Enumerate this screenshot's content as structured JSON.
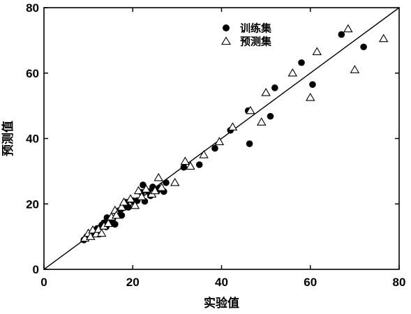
{
  "chart_data": {
    "type": "scatter",
    "title": "",
    "xlabel": "实验值",
    "ylabel": "预测值",
    "xlim": [
      0,
      80
    ],
    "ylim": [
      0,
      80
    ],
    "xticks": [
      "0",
      "20",
      "40",
      "60",
      "80"
    ],
    "yticks": [
      "0",
      "20",
      "40",
      "60",
      "80"
    ],
    "grid": false,
    "legend_position": "top-center",
    "reference_line": {
      "from": [
        0,
        0
      ],
      "to": [
        80,
        80
      ],
      "color": "#000000"
    },
    "series": [
      {
        "name": "训练集",
        "marker": "filled-circle",
        "color": "#000000",
        "points": [
          [
            9.0,
            9.0
          ],
          [
            10.2,
            10.5
          ],
          [
            11.5,
            11.0
          ],
          [
            12.0,
            12.5
          ],
          [
            12.5,
            11.5
          ],
          [
            13.0,
            13.5
          ],
          [
            13.5,
            14.2
          ],
          [
            14.0,
            13.0
          ],
          [
            14.2,
            15.8
          ],
          [
            15.0,
            14.5
          ],
          [
            15.5,
            15.5
          ],
          [
            16.0,
            13.8
          ],
          [
            16.5,
            17.0
          ],
          [
            17.0,
            18.0
          ],
          [
            17.5,
            16.5
          ],
          [
            18.0,
            19.5
          ],
          [
            18.5,
            20.5
          ],
          [
            19.0,
            19.0
          ],
          [
            20.0,
            21.0
          ],
          [
            21.0,
            21.0
          ],
          [
            22.0,
            23.5
          ],
          [
            22.3,
            25.8
          ],
          [
            22.7,
            20.8
          ],
          [
            23.5,
            23.8
          ],
          [
            24.0,
            22.5
          ],
          [
            24.5,
            25.2
          ],
          [
            25.5,
            24.0
          ],
          [
            26.0,
            24.8
          ],
          [
            27.0,
            23.8
          ],
          [
            27.5,
            26.5
          ],
          [
            31.5,
            31.2
          ],
          [
            35.0,
            32.0
          ],
          [
            38.5,
            37.0
          ],
          [
            42.0,
            42.5
          ],
          [
            46.0,
            48.5
          ],
          [
            46.3,
            38.4
          ],
          [
            51.0,
            46.8
          ],
          [
            52.0,
            55.5
          ],
          [
            58.0,
            63.2
          ],
          [
            60.5,
            56.5
          ],
          [
            67.0,
            71.8
          ],
          [
            72.0,
            68.0
          ]
        ]
      },
      {
        "name": "预测集",
        "marker": "open-triangle",
        "color": "#000000",
        "points": [
          [
            9.2,
            9.5
          ],
          [
            10.0,
            11.0
          ],
          [
            10.5,
            10.0
          ],
          [
            11.0,
            12.0
          ],
          [
            11.8,
            10.8
          ],
          [
            12.3,
            12.2
          ],
          [
            13.0,
            11.0
          ],
          [
            13.5,
            13.2
          ],
          [
            14.5,
            14.0
          ],
          [
            15.2,
            16.0
          ],
          [
            16.0,
            18.0
          ],
          [
            16.3,
            16.5
          ],
          [
            17.5,
            19.0
          ],
          [
            18.0,
            20.5
          ],
          [
            19.5,
            21.5
          ],
          [
            20.5,
            19.5
          ],
          [
            21.3,
            24.0
          ],
          [
            22.0,
            22.2
          ],
          [
            23.0,
            24.5
          ],
          [
            24.3,
            23.0
          ],
          [
            25.0,
            24.0
          ],
          [
            25.8,
            28.0
          ],
          [
            26.5,
            25.0
          ],
          [
            29.5,
            26.5
          ],
          [
            31.8,
            33.0
          ],
          [
            33.0,
            31.5
          ],
          [
            36.0,
            35.0
          ],
          [
            39.5,
            39.0
          ],
          [
            42.5,
            43.5
          ],
          [
            46.5,
            48.5
          ],
          [
            49.0,
            45.0
          ],
          [
            50.0,
            54.0
          ],
          [
            56.0,
            60.0
          ],
          [
            60.0,
            52.5
          ],
          [
            61.5,
            66.5
          ],
          [
            68.5,
            73.5
          ],
          [
            70.0,
            61.0
          ],
          [
            76.5,
            70.5
          ]
        ]
      }
    ]
  }
}
